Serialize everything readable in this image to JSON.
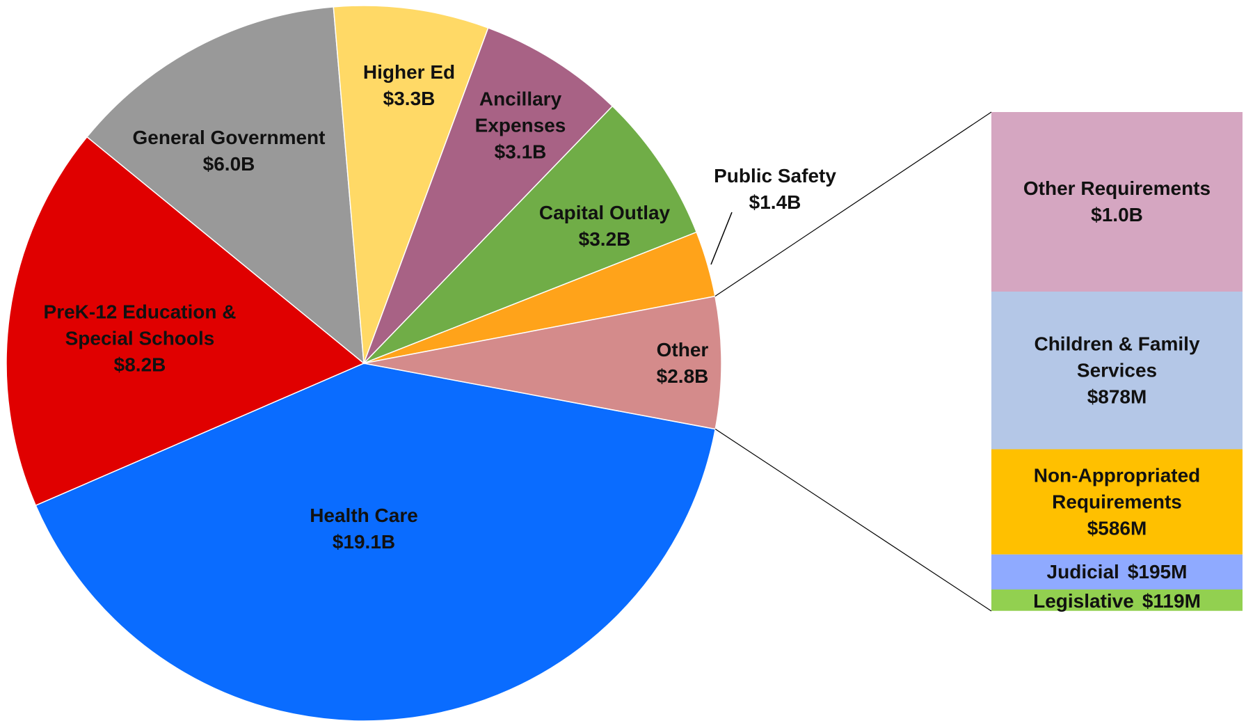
{
  "chart_data": [
    {
      "type": "pie",
      "categories": [
        "Health Care",
        "PreK-12 Education & Special Schools",
        "General Government",
        "Higher Ed",
        "Ancillary Expenses",
        "Capital Outlay",
        "Public Safety",
        "Other"
      ],
      "values": [
        19.1,
        8.2,
        6.0,
        3.3,
        3.1,
        3.2,
        1.4,
        2.8
      ],
      "value_labels": [
        "$19.1B",
        "$8.2B",
        "$6.0B",
        "$3.3B",
        "$3.1B",
        "$3.2B",
        "$1.4B",
        "$2.8B"
      ],
      "colors": [
        "#0a6cff",
        "#e00000",
        "#999999",
        "#ffd966",
        "#a86285",
        "#70ad47",
        "#ffa31a",
        "#d48b8b"
      ]
    },
    {
      "type": "bar",
      "categories": [
        "Other Requirements",
        "Children & Family Services",
        "Non-Appropriated Requirements",
        "Judicial",
        "Legislative"
      ],
      "values": [
        1.0,
        0.878,
        0.586,
        0.195,
        0.119
      ],
      "value_labels": [
        "$1.0B",
        "$878M",
        "$586M",
        "$195M",
        "$119M"
      ],
      "colors": [
        "#d5a6c1",
        "#b4c7e7",
        "#ffc000",
        "#8faaff",
        "#92d050"
      ]
    }
  ]
}
